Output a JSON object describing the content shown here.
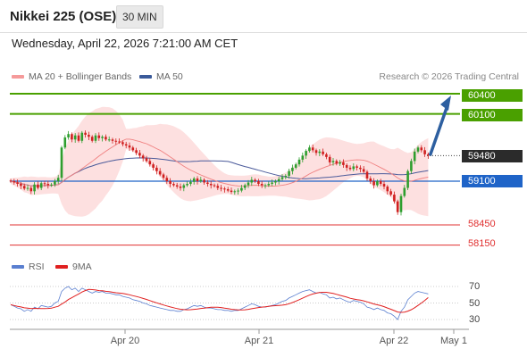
{
  "header": {
    "title": "Nikkei 225 (OSE)",
    "timeframe": "30 MIN"
  },
  "datetime": "Wednesday, April 22, 2026 7:21:00 AM CET",
  "legend": {
    "bollinger_label": "MA 20 + Bollinger Bands",
    "ma50_label": "MA 50",
    "credit": "Research © 2026 Trading Central"
  },
  "colors": {
    "resistance": "#4aa000",
    "pivot": "#1f64c8",
    "support": "#e03030",
    "bands_fill": "#fde0e0",
    "ma20": "#f08080",
    "ma50": "#4a5a9a",
    "bull_candle": "#2e9e2e",
    "bear_candle": "#d02020",
    "arrow": "#2d5fa0",
    "rsi": "#5a7fd0",
    "rsi_ma": "#e02020"
  },
  "levels": {
    "r2": "60400",
    "r1": "60100",
    "last": "59480",
    "pivot": "59100",
    "s1": "58450",
    "s2": "58150"
  },
  "rsi_panel": {
    "rsi_label": "RSI",
    "ma_label": "9MA",
    "ticks": [
      "70",
      "50",
      "30"
    ]
  },
  "x_axis": {
    "labels": [
      "Apr 20",
      "Apr 21",
      "Apr 22",
      "May 1"
    ]
  },
  "chart_data": {
    "type": "candlestick",
    "ylim": [
      58100,
      60500
    ],
    "closes": [
      59100,
      59080,
      59060,
      59030,
      58990,
      59000,
      58950,
      59050,
      59000,
      59070,
      59060,
      59040,
      59050,
      59100,
      59150,
      59600,
      59750,
      59800,
      59720,
      59780,
      59700,
      59820,
      59790,
      59760,
      59700,
      59780,
      59740,
      59760,
      59720,
      59720,
      59700,
      59690,
      59680,
      59650,
      59630,
      59600,
      59560,
      59520,
      59480,
      59440,
      59400,
      59350,
      59300,
      59250,
      59200,
      59150,
      59100,
      59060,
      59040,
      59020,
      59000,
      59040,
      59060,
      59090,
      59140,
      59100,
      59120,
      59080,
      59060,
      59040,
      59030,
      59000,
      58990,
      58980,
      58960,
      58940,
      58950,
      58960,
      59000,
      59040,
      59080,
      59120,
      59100,
      59060,
      59040,
      59040,
      59060,
      59080,
      59100,
      59130,
      59160,
      59180,
      59250,
      59300,
      59350,
      59420,
      59480,
      59550,
      59600,
      59560,
      59520,
      59540,
      59500,
      59460,
      59380,
      59400,
      59360,
      59380,
      59340,
      59300,
      59280,
      59320,
      59300,
      59280,
      59240,
      59140,
      59100,
      59040,
      59100,
      59060,
      59020,
      58950,
      58900,
      58800,
      58640,
      58880,
      59000,
      59250,
      59400,
      59540,
      59600,
      59560,
      59500,
      59480
    ],
    "rsi": [
      48,
      46,
      44,
      43,
      40,
      42,
      40,
      45,
      43,
      47,
      46,
      45,
      46,
      50,
      52,
      64,
      68,
      70,
      66,
      68,
      64,
      68,
      66,
      64,
      62,
      64,
      63,
      64,
      62,
      62,
      61,
      60,
      60,
      58,
      57,
      56,
      54,
      53,
      52,
      50,
      49,
      47,
      46,
      45,
      44,
      43,
      42,
      41,
      41,
      40,
      40,
      42,
      43,
      45,
      47,
      46,
      47,
      45,
      44,
      44,
      43,
      42,
      42,
      41,
      41,
      40,
      41,
      41,
      43,
      45,
      47,
      49,
      48,
      46,
      45,
      45,
      46,
      47,
      48,
      50,
      52,
      53,
      56,
      58,
      60,
      62,
      64,
      65,
      66,
      64,
      62,
      63,
      61,
      60,
      56,
      57,
      55,
      56,
      54,
      52,
      51,
      53,
      52,
      51,
      49,
      45,
      44,
      42,
      44,
      42,
      41,
      38,
      37,
      34,
      30,
      40,
      45,
      54,
      58,
      62,
      64,
      63,
      62,
      61
    ],
    "x_labels": [
      "Apr 20",
      "Apr 21",
      "Apr 22",
      "May 1"
    ]
  }
}
